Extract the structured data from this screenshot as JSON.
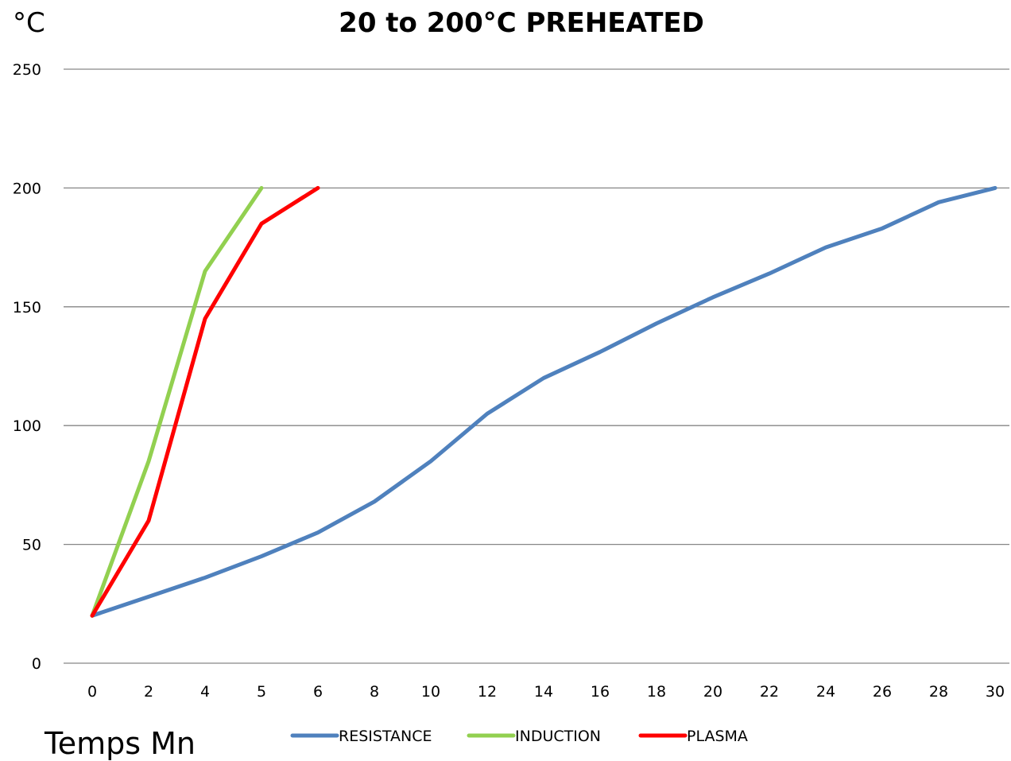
{
  "chart_data": {
    "type": "line",
    "title": "20 to 200°C  PREHEATED",
    "ylabel": "°C",
    "xlabel": "Temps Mn",
    "categories": [
      "0",
      "2",
      "4",
      "5",
      "6",
      "8",
      "10",
      "12",
      "14",
      "16",
      "18",
      "20",
      "22",
      "24",
      "26",
      "28",
      "30"
    ],
    "ylim": [
      0,
      250
    ],
    "yticks": [
      0,
      50,
      100,
      150,
      200,
      250
    ],
    "grid": true,
    "legend_position": "bottom",
    "series": [
      {
        "name": "RESISTANCE",
        "color": "#4f81bd",
        "values": [
          20,
          28,
          36,
          45,
          55,
          68,
          85,
          105,
          120,
          131,
          143,
          154,
          164,
          175,
          183,
          194,
          200
        ]
      },
      {
        "name": "INDUCTION",
        "color": "#92d050",
        "values": [
          20,
          85,
          165,
          200,
          null,
          null,
          null,
          null,
          null,
          null,
          null,
          null,
          null,
          null,
          null,
          null,
          null
        ]
      },
      {
        "name": "PLASMA",
        "color": "#ff0000",
        "values": [
          20,
          60,
          145,
          185,
          200,
          null,
          null,
          null,
          null,
          null,
          null,
          null,
          null,
          null,
          null,
          null,
          null
        ]
      }
    ]
  }
}
